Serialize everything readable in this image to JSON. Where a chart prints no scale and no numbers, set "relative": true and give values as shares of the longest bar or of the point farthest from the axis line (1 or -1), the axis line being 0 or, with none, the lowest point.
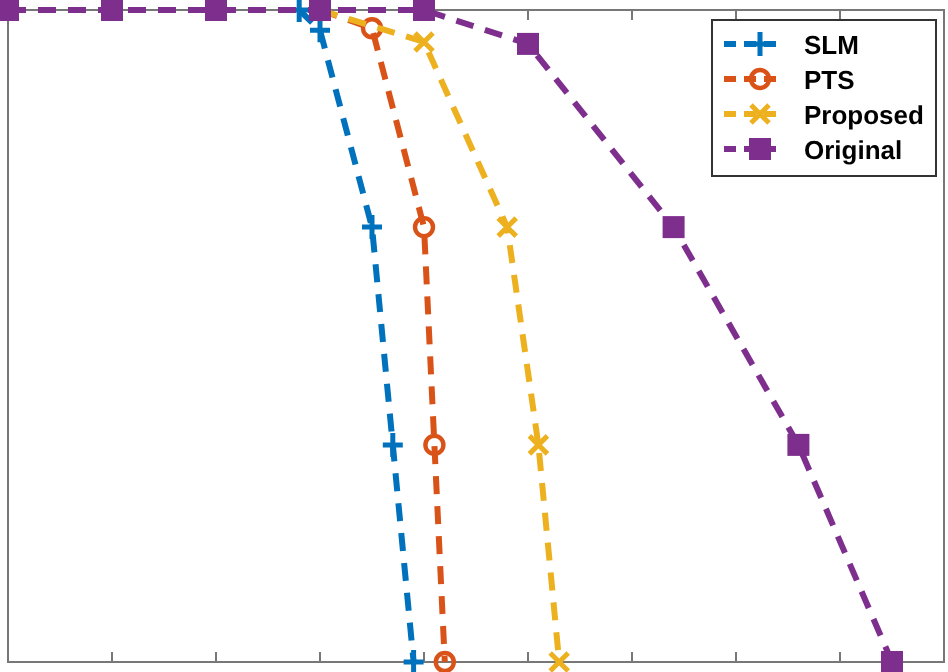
{
  "chart_data": {
    "type": "line",
    "relative": true,
    "grid": false,
    "legend": "top right",
    "line_style": "dashed",
    "categories": [
      null,
      null,
      null,
      null,
      null,
      null,
      null,
      null,
      null,
      null,
      null,
      null,
      null,
      null,
      null,
      null,
      null,
      null,
      null,
      null,
      null,
      null,
      null,
      null,
      null,
      null,
      null,
      null,
      null,
      null,
      null,
      null,
      null,
      null,
      null,
      null,
      null,
      null,
      null,
      null,
      null,
      null,
      null,
      null,
      null,
      null,
      null,
      null,
      null,
      null,
      null,
      null,
      null,
      null,
      null,
      null,
      null,
      null,
      null,
      null,
      null,
      null,
      null,
      null,
      null,
      null,
      null,
      null,
      null,
      null,
      null,
      null,
      null,
      null,
      null,
      null,
      null,
      null,
      null,
      null,
      null,
      null,
      null,
      null,
      null,
      null,
      null,
      null,
      null,
      null,
      null
    ],
    "series": [
      {
        "name": "SLM",
        "color": "#0072bd",
        "marker": "cross",
        "values": [
          null,
          null,
          null,
          null,
          null,
          null,
          null,
          null,
          null,
          null,
          null,
          null,
          null,
          null,
          null,
          null,
          null,
          null,
          null,
          null,
          null,
          null,
          null,
          null,
          null,
          null,
          null,
          null,
          1,
          null,
          0.969,
          null,
          null,
          null,
          null,
          0.667,
          null,
          0.333,
          null,
          0,
          null,
          null,
          null,
          null,
          null,
          null,
          null,
          null,
          null,
          null,
          null,
          null,
          null,
          null,
          null,
          null,
          null,
          null,
          null,
          null,
          null,
          null,
          null,
          null,
          null,
          null,
          null,
          null,
          null,
          null,
          null,
          null,
          null,
          null,
          null,
          null,
          null,
          null,
          null,
          null,
          null,
          null,
          null,
          null,
          null,
          null,
          null,
          null,
          null,
          null,
          null
        ]
      },
      {
        "name": "PTS",
        "color": "#d95319",
        "marker": "circle",
        "values": [
          null,
          null,
          null,
          null,
          null,
          null,
          null,
          null,
          null,
          null,
          null,
          null,
          null,
          null,
          null,
          null,
          null,
          null,
          null,
          null,
          null,
          null,
          null,
          null,
          null,
          null,
          null,
          null,
          null,
          null,
          1,
          null,
          null,
          null,
          null,
          0.972,
          null,
          null,
          null,
          null,
          0.667,
          0.333,
          0,
          null,
          null,
          null,
          null,
          null,
          null,
          null,
          null,
          null,
          null,
          null,
          null,
          null,
          null,
          null,
          null,
          null,
          null,
          null,
          null,
          null,
          null,
          null,
          null,
          null,
          null,
          null,
          null,
          null,
          null,
          null,
          null,
          null,
          null,
          null,
          null,
          null,
          null,
          null,
          null,
          null,
          null,
          null,
          null,
          null,
          null,
          null,
          null
        ]
      },
      {
        "name": "Proposed",
        "color": "#edb120",
        "marker": "cross",
        "values": [
          null,
          null,
          null,
          null,
          null,
          null,
          null,
          null,
          null,
          null,
          null,
          null,
          null,
          null,
          null,
          null,
          null,
          null,
          null,
          null,
          null,
          null,
          null,
          null,
          null,
          null,
          null,
          null,
          null,
          null,
          1,
          null,
          null,
          null,
          null,
          null,
          null,
          null,
          null,
          null,
          0.951,
          null,
          null,
          null,
          null,
          null,
          null,
          null,
          0.667,
          null,
          null,
          0.333,
          null,
          0,
          null,
          null,
          null,
          null,
          null,
          null,
          null,
          null,
          null,
          null,
          null,
          null,
          null,
          null,
          null,
          null,
          null,
          null,
          null,
          null,
          null,
          null,
          null,
          null,
          null,
          null,
          null,
          null,
          null,
          null,
          null,
          null,
          null,
          null,
          null,
          null,
          null
        ]
      },
      {
        "name": "Original",
        "color": "#7e2f8e",
        "marker": "square",
        "values": [
          1,
          null,
          null,
          null,
          null,
          null,
          null,
          null,
          null,
          null,
          1,
          null,
          null,
          null,
          null,
          null,
          null,
          null,
          null,
          null,
          1,
          null,
          null,
          null,
          null,
          null,
          null,
          null,
          null,
          null,
          1,
          null,
          null,
          null,
          null,
          null,
          null,
          null,
          null,
          null,
          1,
          null,
          null,
          null,
          null,
          null,
          null,
          null,
          null,
          null,
          0.948,
          null,
          null,
          null,
          null,
          null,
          null,
          null,
          null,
          null,
          null,
          null,
          null,
          null,
          0.667,
          null,
          null,
          null,
          null,
          null,
          null,
          null,
          null,
          null,
          null,
          null,
          0.333,
          null,
          null,
          null,
          null,
          null,
          null,
          null,
          null,
          0,
          null,
          null,
          null,
          null,
          null
        ]
      }
    ]
  }
}
